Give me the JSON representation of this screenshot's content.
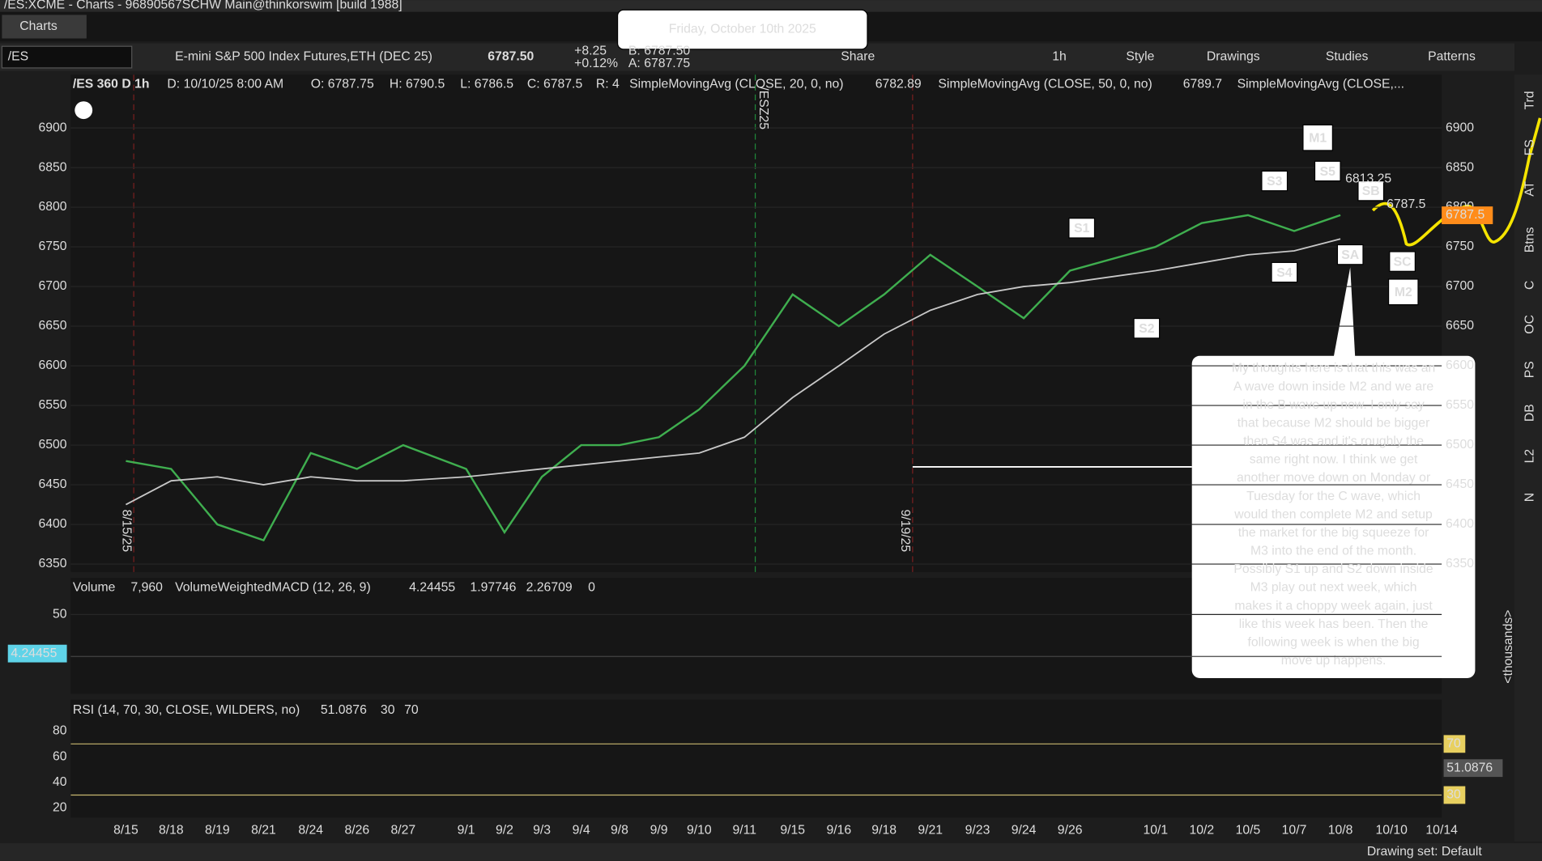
{
  "window": {
    "title": "/ES:XCME - Charts - 96890567SCHW Main@thinkorswim [build 1988]",
    "tab": "Charts"
  },
  "toolbar": {
    "symbol": "/ES",
    "description": "E-mini S&P 500 Index Futures,ETH (DEC 25)",
    "last": "6787.50",
    "change": "+8.25",
    "change_pct": "+0.12%",
    "bid": "B: 6787.50",
    "ask": "A: 6787.75",
    "buttons": [
      "Share",
      "1h",
      "Style",
      "Drawings",
      "Studies",
      "Patterns"
    ]
  },
  "date_banner": "Friday, October 10th 2025",
  "chart_header": [
    "/ES 360 D 1h",
    "D: 10/10/25 8:00 AM",
    "O: 6787.75",
    "H: 6790.5",
    "L: 6786.5",
    "C: 6787.5",
    "R: 4",
    "SimpleMovingAvg (CLOSE, 20, 0, no)",
    "6782.89",
    "SimpleMovingAvg (CLOSE, 50, 0, no)",
    "6789.7",
    "SimpleMovingAvg (CLOSE,..."
  ],
  "chart_data": {
    "type": "line",
    "categories": [
      "8/15",
      "8/18",
      "8/19",
      "8/21",
      "8/24",
      "8/26",
      "8/27",
      "9/1",
      "9/2",
      "9/3",
      "9/4",
      "9/8",
      "9/9",
      "9/10",
      "9/11",
      "9/15",
      "9/16",
      "9/18",
      "9/21",
      "9/23",
      "9/24",
      "9/26",
      "10/1",
      "10/2",
      "10/5",
      "10/7",
      "10/8",
      "10/10",
      "10/14"
    ],
    "series": [
      {
        "color": "#3fae4f",
        "values": [
          6480,
          6470,
          6400,
          6380,
          6490,
          6470,
          6500,
          6470,
          6390,
          6460,
          6500,
          6500,
          6510,
          6545,
          6600,
          6690,
          6650,
          6690,
          6740,
          6700,
          6660,
          6720,
          6750,
          6780,
          6790,
          6770,
          6790,
          null,
          null
        ]
      },
      {
        "color": "#c8c8c8",
        "values": [
          6425,
          6455,
          6460,
          6450,
          6460,
          6455,
          6455,
          6460,
          6465,
          6470,
          6475,
          6480,
          6485,
          6490,
          6510,
          6560,
          6600,
          6640,
          6670,
          6690,
          6700,
          6705,
          6720,
          6730,
          6740,
          6745,
          6760,
          null,
          null
        ]
      }
    ],
    "ylim": [
      6340,
      6967
    ],
    "yticks": [
      6350,
      6400,
      6450,
      6500,
      6550,
      6600,
      6650,
      6700,
      6750,
      6800,
      6850,
      6900
    ],
    "labels": [
      "M1",
      "S5",
      "S3",
      "SB",
      "S1",
      "S4",
      "SA",
      "SC",
      "M2",
      "S2"
    ],
    "markers": [
      "/ESZ25",
      "8/15/25",
      "9/19/25"
    ],
    "price_tag": "6787.5",
    "bubble_values": [
      "6813.25",
      "6787.5"
    ]
  },
  "note": [
    "My thoughts here is that this was an",
    "A wave down inside M2 and we are",
    "in the B wave up now.  I only say",
    "that because M2 should be bigger",
    "then S4 was and it's roughly the",
    "same right now. I think we get",
    "another move down on Monday or",
    "Tuesday for the C wave, which",
    "would then complete M2 and setup",
    "the market for the big squeeze for",
    "M3 into the end of the month.",
    "Possibly S1 up and S2 down inside",
    "M3 play out next week, which",
    "makes it a choppy week again, just",
    "like this week has been.  Then the",
    "following week is when the big",
    "move up happens."
  ],
  "volume_panel": {
    "header": [
      "Volume",
      "7,960",
      "VolumeWeightedMACD (12, 26, 9)",
      "4.24455",
      "1.97746",
      "2.26709",
      "0"
    ],
    "ylim": [
      -40,
      65
    ],
    "yticks": [
      50
    ],
    "unit": "<thousands>"
  },
  "rsi_panel": {
    "header": [
      "RSI (14, 70, 30, CLOSE, WILDERS, no)",
      "51.0876",
      "30",
      "70"
    ],
    "ylim": [
      12.3,
      89.2
    ],
    "yticks": [
      20,
      40,
      60,
      80
    ],
    "levels": [
      70,
      30
    ],
    "current": "51.0876"
  },
  "sidebar": [
    "Trd",
    "FS",
    "AT",
    "Btns",
    "C",
    "OC",
    "PS",
    "DB",
    "L2",
    "N"
  ],
  "status": "Drawing set: Default"
}
